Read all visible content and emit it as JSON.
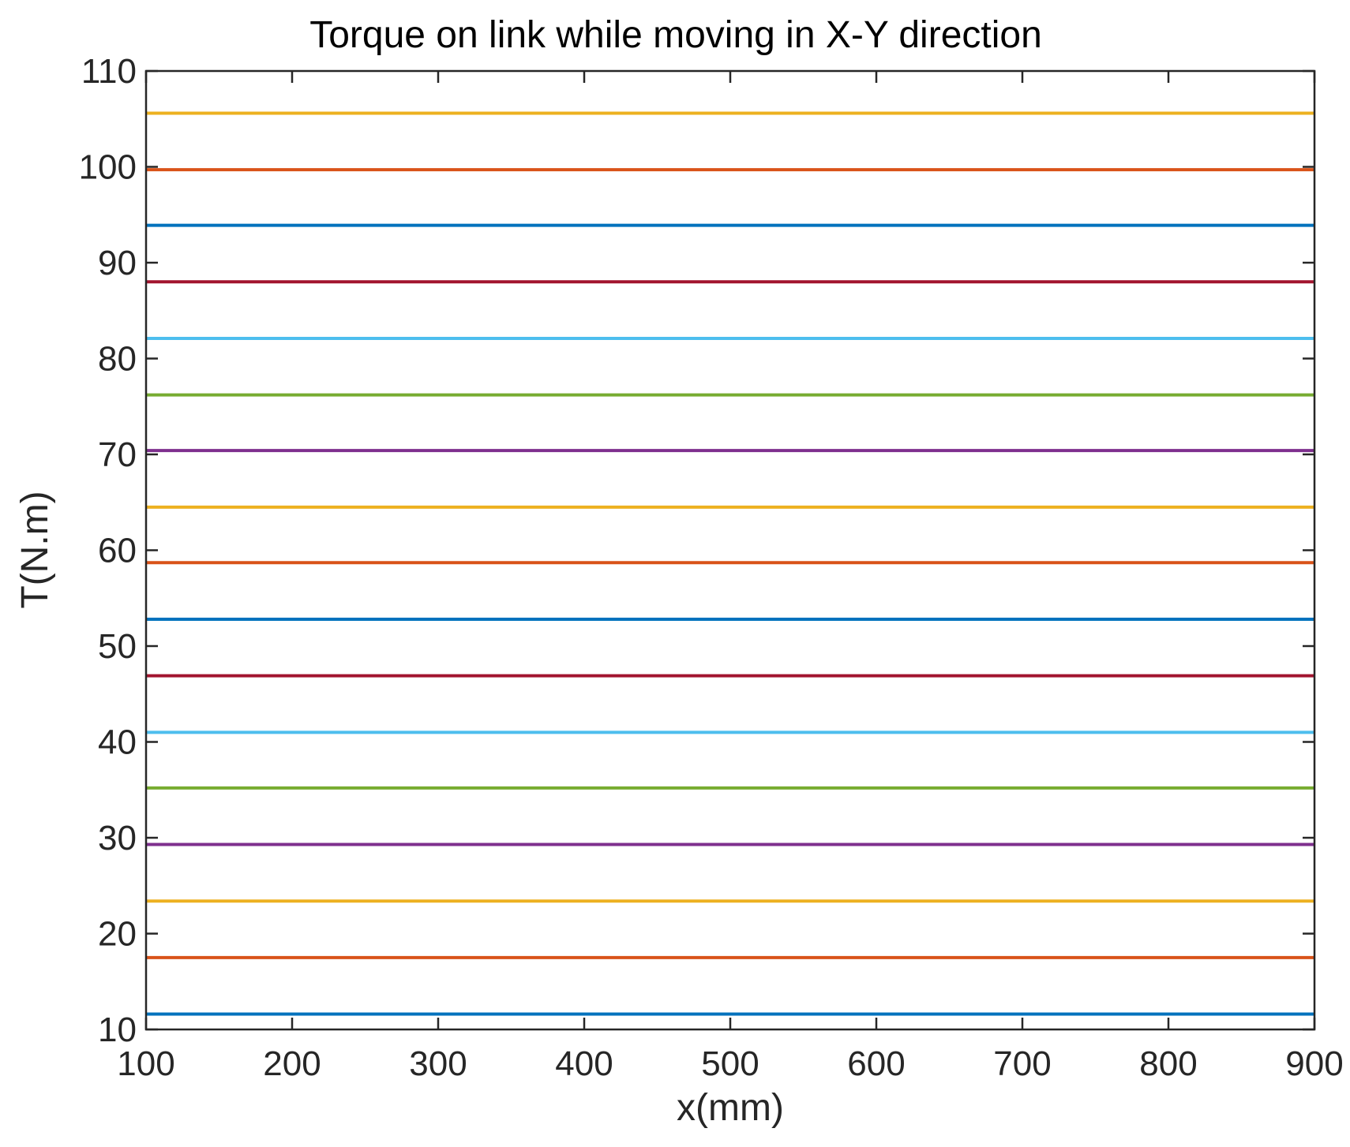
{
  "chart_data": {
    "type": "line",
    "title": "Torque on link while moving in X-Y direction",
    "xlabel": "x(mm)",
    "ylabel": "T(N.m)",
    "xlim": [
      100,
      900
    ],
    "ylim": [
      10,
      110
    ],
    "xticks": [
      100,
      200,
      300,
      400,
      500,
      600,
      700,
      800,
      900
    ],
    "yticks": [
      10,
      20,
      30,
      40,
      50,
      60,
      70,
      80,
      90,
      100,
      110
    ],
    "grid": false,
    "legend": "none",
    "series": [
      {
        "color": "#0072BD",
        "x": [
          100,
          900
        ],
        "y": [
          11.6,
          11.6
        ]
      },
      {
        "color": "#D95319",
        "x": [
          100,
          900
        ],
        "y": [
          17.5,
          17.5
        ]
      },
      {
        "color": "#EDB120",
        "x": [
          100,
          900
        ],
        "y": [
          23.4,
          23.4
        ]
      },
      {
        "color": "#7E2F8E",
        "x": [
          100,
          900
        ],
        "y": [
          29.3,
          29.3
        ]
      },
      {
        "color": "#77AC30",
        "x": [
          100,
          900
        ],
        "y": [
          35.2,
          35.2
        ]
      },
      {
        "color": "#4DBEEE",
        "x": [
          100,
          900
        ],
        "y": [
          41.0,
          41.0
        ]
      },
      {
        "color": "#A2142F",
        "x": [
          100,
          900
        ],
        "y": [
          46.9,
          46.9
        ]
      },
      {
        "color": "#0072BD",
        "x": [
          100,
          900
        ],
        "y": [
          52.8,
          52.8
        ]
      },
      {
        "color": "#D95319",
        "x": [
          100,
          900
        ],
        "y": [
          58.7,
          58.7
        ]
      },
      {
        "color": "#EDB120",
        "x": [
          100,
          900
        ],
        "y": [
          64.5,
          64.5
        ]
      },
      {
        "color": "#7E2F8E",
        "x": [
          100,
          900
        ],
        "y": [
          70.4,
          70.4
        ]
      },
      {
        "color": "#77AC30",
        "x": [
          100,
          900
        ],
        "y": [
          76.2,
          76.2
        ]
      },
      {
        "color": "#4DBEEE",
        "x": [
          100,
          900
        ],
        "y": [
          82.1,
          82.1
        ]
      },
      {
        "color": "#A2142F",
        "x": [
          100,
          900
        ],
        "y": [
          88.0,
          88.0
        ]
      },
      {
        "color": "#0072BD",
        "x": [
          100,
          900
        ],
        "y": [
          93.9,
          93.9
        ]
      },
      {
        "color": "#D95319",
        "x": [
          100,
          900
        ],
        "y": [
          99.7,
          99.7
        ]
      },
      {
        "color": "#EDB120",
        "x": [
          100,
          900
        ],
        "y": [
          105.6,
          105.6
        ]
      }
    ]
  }
}
